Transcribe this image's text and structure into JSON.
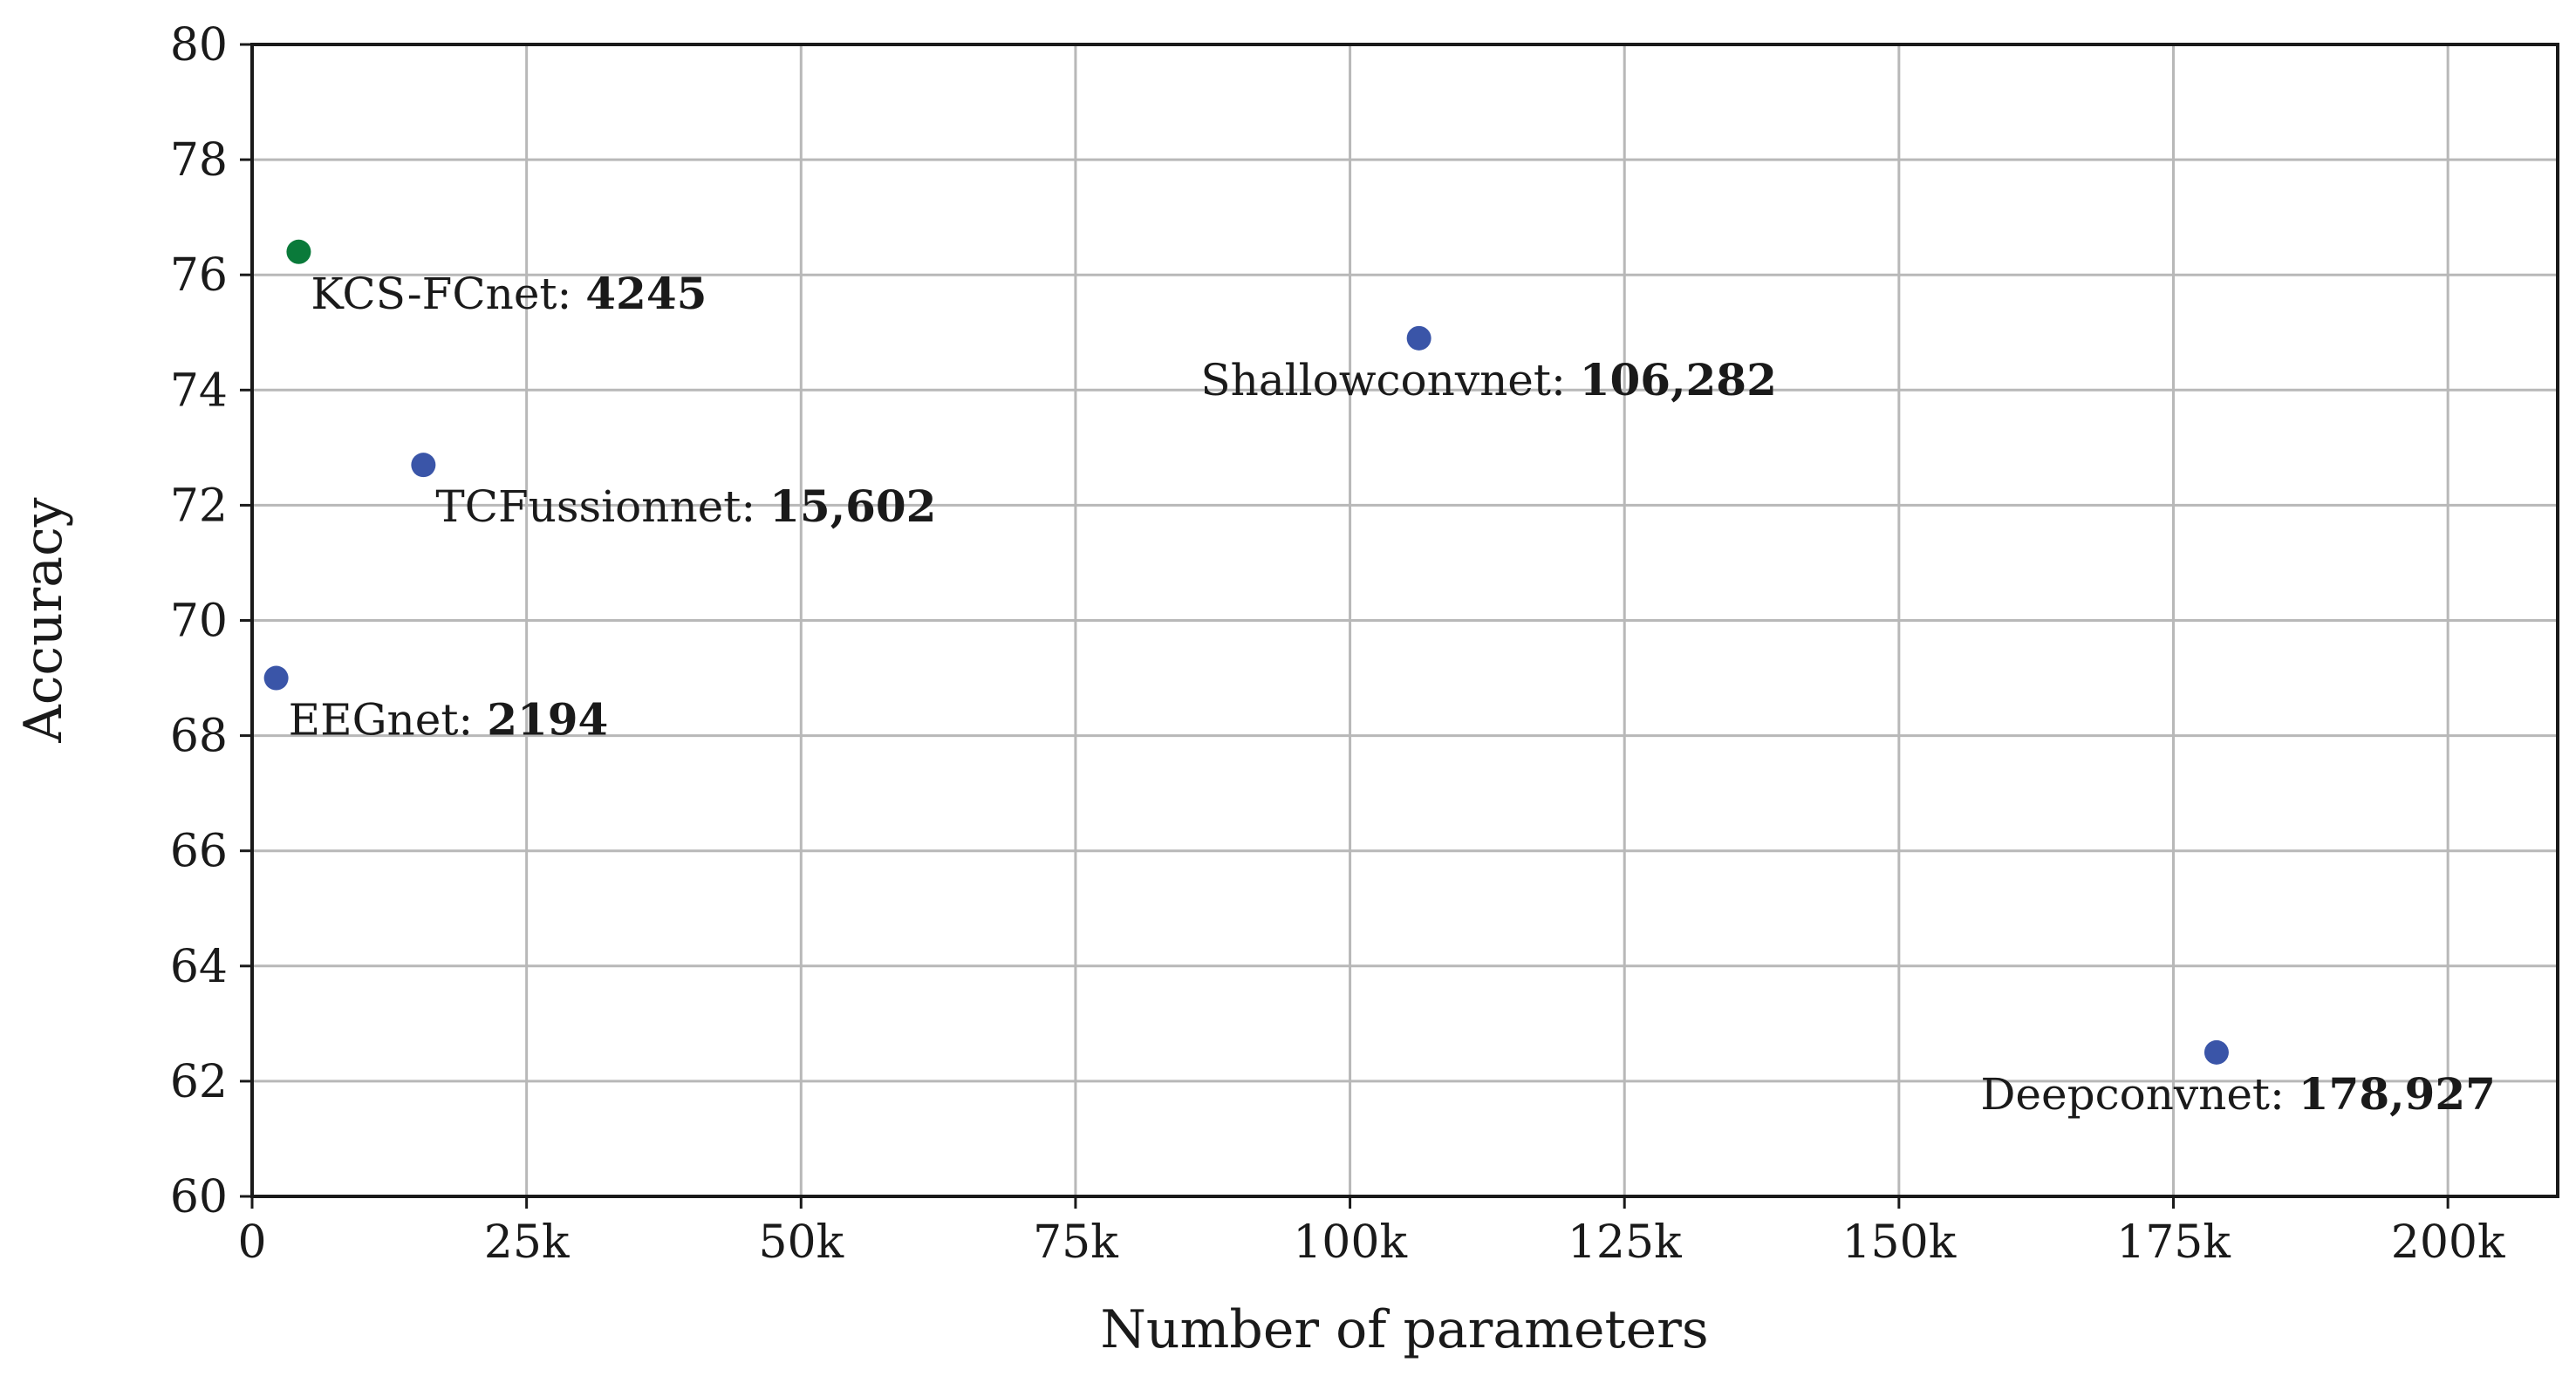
{
  "chart_data": {
    "type": "scatter",
    "xlabel": "Number of parameters",
    "ylabel": "Accuracy",
    "xlim": [
      0,
      210000
    ],
    "ylim": [
      60,
      80
    ],
    "xticks": [
      0,
      25000,
      50000,
      75000,
      100000,
      125000,
      150000,
      175000,
      200000
    ],
    "xtick_labels": [
      "0",
      "25k",
      "50k",
      "75k",
      "100k",
      "125k",
      "150k",
      "175k",
      "200k"
    ],
    "yticks": [
      60,
      62,
      64,
      66,
      68,
      70,
      72,
      74,
      76,
      78,
      80
    ],
    "ytick_labels": [
      "60",
      "62",
      "64",
      "66",
      "68",
      "70",
      "72",
      "74",
      "76",
      "78",
      "80"
    ],
    "grid": true,
    "points": [
      {
        "name": "KCS-FCnet",
        "x": 4245,
        "y": 76.4,
        "value_label": "4245",
        "color": "#0a7a3a",
        "anchor": "left"
      },
      {
        "name": "TCFussionnet",
        "x": 15602,
        "y": 72.7,
        "value_label": "15,602",
        "color": "#3a55a8",
        "anchor": "left"
      },
      {
        "name": "EEGnet",
        "x": 2194,
        "y": 69.0,
        "value_label": "2194",
        "color": "#3a55a8",
        "anchor": "left"
      },
      {
        "name": "Shallowconvnet",
        "x": 106282,
        "y": 74.9,
        "value_label": "106,282",
        "color": "#3a55a8",
        "anchor": "center"
      },
      {
        "name": "Deepconvnet",
        "x": 178927,
        "y": 62.5,
        "value_label": "178,927",
        "color": "#3a55a8",
        "anchor": "right"
      }
    ]
  }
}
